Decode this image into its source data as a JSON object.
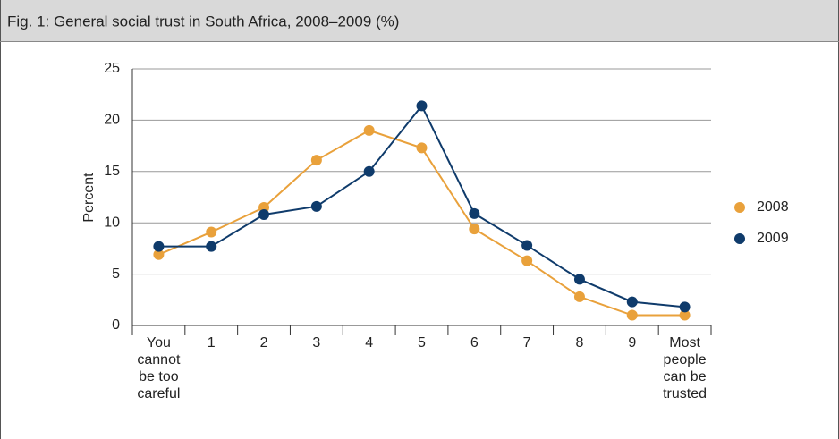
{
  "chart_data": {
    "type": "line",
    "title": "Fig. 1: General social trust in South Africa, 2008–2009 (%)",
    "y_label": "Percent",
    "categories": [
      "You cannot be too careful",
      "1",
      "2",
      "3",
      "4",
      "5",
      "6",
      "7",
      "8",
      "9",
      "Most people can be trusted"
    ],
    "series": [
      {
        "name": "2008",
        "color": "#e9a13b",
        "values": [
          6.9,
          9.1,
          11.5,
          16.1,
          19.0,
          17.3,
          9.4,
          6.3,
          2.8,
          1.0,
          1.0
        ]
      },
      {
        "name": "2009",
        "color": "#0f3b6b",
        "values": [
          7.7,
          7.7,
          10.8,
          11.6,
          15.0,
          21.4,
          10.9,
          7.8,
          4.5,
          2.3,
          1.8
        ]
      }
    ],
    "ylim": [
      0,
      25
    ],
    "yticks": [
      0,
      5,
      10,
      15,
      20,
      25
    ],
    "grid": true,
    "legend": "right"
  }
}
